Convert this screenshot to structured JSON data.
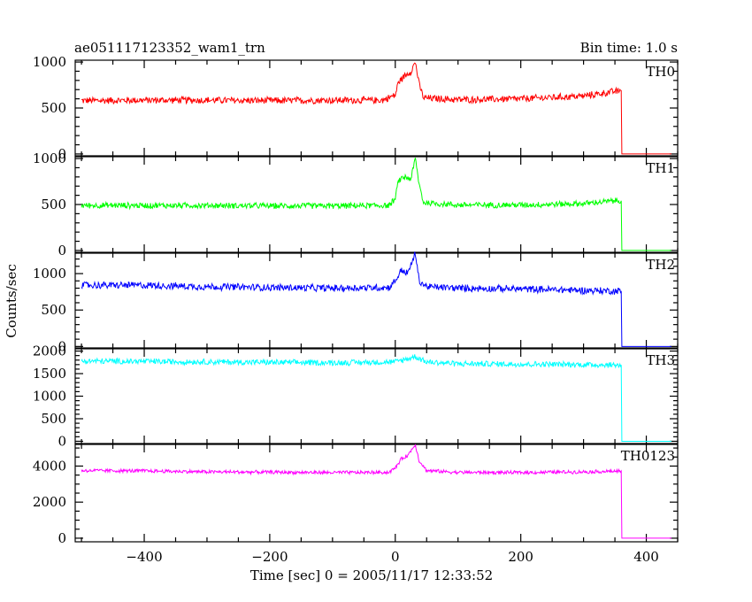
{
  "chart_data": {
    "type": "line",
    "title": "ae051117123352_wam1_trn",
    "subtitle": "Bin time: 1.0 s",
    "xlabel": "Time [sec] 0 = 2005/11/17 12:33:52",
    "ylabel": "Counts/sec",
    "xlim": [
      -510,
      450
    ],
    "xticks": [
      -400,
      -200,
      0,
      200,
      400
    ],
    "x_minor_step": 50,
    "grid": false,
    "panels": [
      {
        "name": "TH0",
        "color": "#ff0000",
        "ylim": [
          -20,
          1020
        ],
        "yticks": [
          0,
          500,
          1000
        ],
        "y_minor_step": 100,
        "series": [
          {
            "x": -500,
            "y": 580
          },
          {
            "x": -400,
            "y": 585
          },
          {
            "x": -300,
            "y": 585
          },
          {
            "x": -200,
            "y": 580
          },
          {
            "x": -100,
            "y": 585
          },
          {
            "x": -20,
            "y": 585
          },
          {
            "x": 0,
            "y": 640
          },
          {
            "x": 5,
            "y": 780
          },
          {
            "x": 15,
            "y": 850
          },
          {
            "x": 25,
            "y": 900
          },
          {
            "x": 32,
            "y": 1000
          },
          {
            "x": 38,
            "y": 760
          },
          {
            "x": 45,
            "y": 610
          },
          {
            "x": 100,
            "y": 590
          },
          {
            "x": 200,
            "y": 600
          },
          {
            "x": 300,
            "y": 630
          },
          {
            "x": 350,
            "y": 680
          },
          {
            "x": 360,
            "y": 690
          },
          {
            "x": 362,
            "y": 0
          },
          {
            "x": 440,
            "y": 0
          }
        ],
        "noise": 35
      },
      {
        "name": "TH1",
        "color": "#00ff00",
        "ylim": [
          -20,
          1020
        ],
        "yticks": [
          0,
          500,
          1000
        ],
        "y_minor_step": 100,
        "series": [
          {
            "x": -500,
            "y": 490
          },
          {
            "x": -400,
            "y": 490
          },
          {
            "x": -300,
            "y": 490
          },
          {
            "x": -200,
            "y": 485
          },
          {
            "x": -100,
            "y": 485
          },
          {
            "x": -10,
            "y": 490
          },
          {
            "x": 0,
            "y": 560
          },
          {
            "x": 5,
            "y": 760
          },
          {
            "x": 15,
            "y": 800
          },
          {
            "x": 25,
            "y": 780
          },
          {
            "x": 32,
            "y": 1000
          },
          {
            "x": 38,
            "y": 720
          },
          {
            "x": 45,
            "y": 520
          },
          {
            "x": 100,
            "y": 495
          },
          {
            "x": 200,
            "y": 495
          },
          {
            "x": 300,
            "y": 510
          },
          {
            "x": 350,
            "y": 540
          },
          {
            "x": 360,
            "y": 540
          },
          {
            "x": 362,
            "y": 0
          },
          {
            "x": 440,
            "y": 0
          }
        ],
        "noise": 30
      },
      {
        "name": "TH2",
        "color": "#0000ff",
        "ylim": [
          -20,
          1280
        ],
        "yticks": [
          0,
          500,
          1000
        ],
        "y_minor_step": 100,
        "series": [
          {
            "x": -500,
            "y": 840
          },
          {
            "x": -400,
            "y": 840
          },
          {
            "x": -300,
            "y": 820
          },
          {
            "x": -200,
            "y": 810
          },
          {
            "x": -100,
            "y": 800
          },
          {
            "x": -10,
            "y": 810
          },
          {
            "x": 0,
            "y": 900
          },
          {
            "x": 10,
            "y": 1050
          },
          {
            "x": 20,
            "y": 1000
          },
          {
            "x": 32,
            "y": 1280
          },
          {
            "x": 38,
            "y": 900
          },
          {
            "x": 50,
            "y": 820
          },
          {
            "x": 100,
            "y": 800
          },
          {
            "x": 200,
            "y": 790
          },
          {
            "x": 300,
            "y": 770
          },
          {
            "x": 360,
            "y": 760
          },
          {
            "x": 362,
            "y": 0
          },
          {
            "x": 440,
            "y": 0
          }
        ],
        "noise": 45
      },
      {
        "name": "TH3",
        "color": "#00ffff",
        "ylim": [
          -50,
          2050
        ],
        "yticks": [
          0,
          500,
          1000,
          1500,
          2000
        ],
        "y_minor_step": 100,
        "series": [
          {
            "x": -500,
            "y": 1780
          },
          {
            "x": -400,
            "y": 1770
          },
          {
            "x": -300,
            "y": 1760
          },
          {
            "x": -200,
            "y": 1750
          },
          {
            "x": -100,
            "y": 1740
          },
          {
            "x": 0,
            "y": 1760
          },
          {
            "x": 20,
            "y": 1830
          },
          {
            "x": 32,
            "y": 1880
          },
          {
            "x": 50,
            "y": 1760
          },
          {
            "x": 100,
            "y": 1720
          },
          {
            "x": 200,
            "y": 1710
          },
          {
            "x": 300,
            "y": 1700
          },
          {
            "x": 360,
            "y": 1690
          },
          {
            "x": 362,
            "y": 0
          },
          {
            "x": 440,
            "y": 0
          }
        ],
        "noise": 60
      },
      {
        "name": "TH0123",
        "color": "#ff00ff",
        "ylim": [
          -200,
          5200
        ],
        "yticks": [
          0,
          2000,
          4000
        ],
        "y_minor_step": 500,
        "series": [
          {
            "x": -500,
            "y": 3750
          },
          {
            "x": -400,
            "y": 3730
          },
          {
            "x": -300,
            "y": 3680
          },
          {
            "x": -200,
            "y": 3660
          },
          {
            "x": -100,
            "y": 3640
          },
          {
            "x": -10,
            "y": 3650
          },
          {
            "x": 0,
            "y": 3900
          },
          {
            "x": 10,
            "y": 4400
          },
          {
            "x": 20,
            "y": 4600
          },
          {
            "x": 32,
            "y": 5200
          },
          {
            "x": 38,
            "y": 4300
          },
          {
            "x": 50,
            "y": 3750
          },
          {
            "x": 100,
            "y": 3650
          },
          {
            "x": 200,
            "y": 3640
          },
          {
            "x": 300,
            "y": 3680
          },
          {
            "x": 360,
            "y": 3720
          },
          {
            "x": 362,
            "y": 0
          },
          {
            "x": 440,
            "y": 0
          }
        ],
        "noise": 90
      }
    ]
  }
}
